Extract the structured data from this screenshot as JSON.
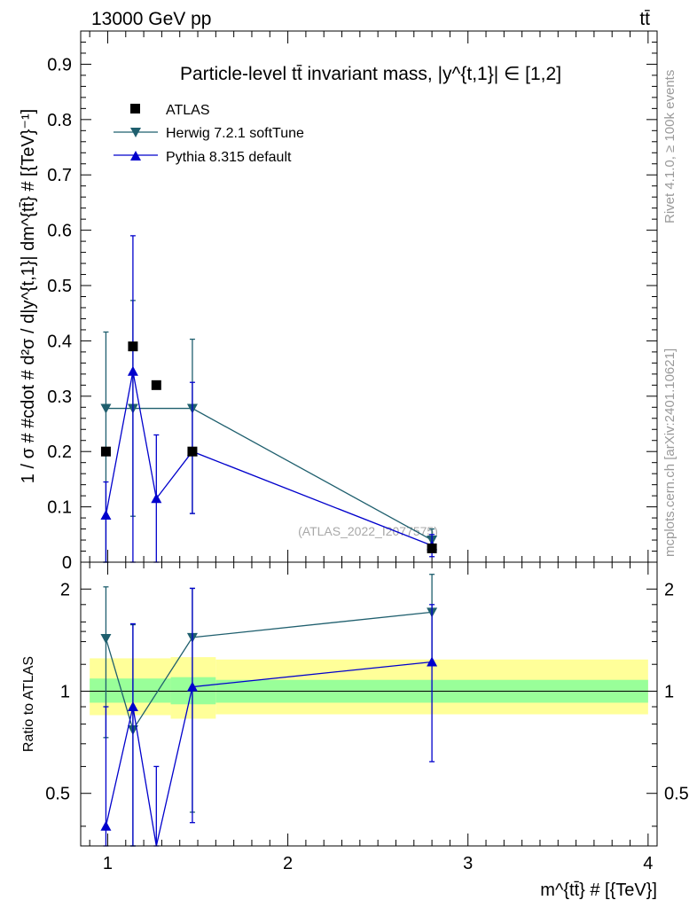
{
  "header": {
    "energy_label": "13000 GeV pp",
    "process_label": "tt̄"
  },
  "side_labels": {
    "rivet": "Rivet 4.1.0, ≥ 100k events",
    "mcplots": "mcplots.cern.ch [arXiv:2401.10621]"
  },
  "watermark": "(ATLAS_2022_I2077575)",
  "colors": {
    "data": "#000000",
    "herwig": "#1f5f6e",
    "pythia": "#0000cc",
    "band_outer": "#ffff99",
    "band_inner": "#99ff99"
  },
  "chart_data": [
    {
      "type": "scatter",
      "title": "Particle-level tt̄ invariant mass, |y^{t,1}| ∈ [1,2]",
      "xlabel": "m^{tt̄} # [{TeV}]",
      "ylabel": "1 / σ # #cdot # d²σ / d|y^{t,1}| dm^{tt̄} # [{TeV}⁻¹]",
      "xlim": [
        0.85,
        4.05
      ],
      "ylim": [
        0,
        0.96
      ],
      "x_ticks": [
        1,
        2,
        3,
        4
      ],
      "y_ticks": [
        0,
        0.1,
        0.2,
        0.3,
        0.4,
        0.5,
        0.6,
        0.7,
        0.8,
        0.9
      ],
      "y_tick_labels": [
        "0",
        "0.1",
        "0.2",
        "0.3",
        "0.4",
        "0.5",
        "0.6",
        "0.7",
        "0.8",
        "0.9"
      ],
      "legend": [
        "ATLAS",
        "Herwig 7.2.1 softTune",
        "Pythia 8.315 default"
      ],
      "series": [
        {
          "name": "ATLAS",
          "marker": "square",
          "x": [
            0.99,
            1.14,
            1.27,
            1.47,
            2.8
          ],
          "y": [
            0.2,
            0.39,
            0.32,
            0.2,
            0.025
          ]
        },
        {
          "name": "Herwig 7.2.1 softTune",
          "marker": "triangle-down",
          "x": [
            0.99,
            1.14,
            1.47,
            2.8
          ],
          "y": [
            0.278,
            0.278,
            0.278,
            0.04
          ],
          "err_low": [
            0.278,
            0.195,
            0.19,
            0.02
          ],
          "err_high": [
            0.138,
            0.195,
            0.125,
            0.02
          ]
        },
        {
          "name": "Pythia 8.315 default",
          "marker": "triangle-up",
          "x": [
            0.99,
            1.14,
            1.27,
            1.47,
            2.8
          ],
          "y": [
            0.085,
            0.345,
            0.115,
            0.2,
            0.03
          ],
          "err_low": [
            0.085,
            0.345,
            0.115,
            0.112,
            0.02
          ],
          "err_high": [
            0.06,
            0.245,
            0.115,
            0.125,
            0.02
          ]
        }
      ]
    },
    {
      "type": "line",
      "title": "",
      "xlabel": "m^{tt̄} # [{TeV}]",
      "ylabel": "Ratio to ATLAS",
      "xlim": [
        0.85,
        4.05
      ],
      "ylim": [
        0.35,
        2.4
      ],
      "y_scale": "log",
      "x_ticks": [
        1,
        2,
        3,
        4
      ],
      "y_ticks": [
        0.5,
        1,
        2
      ],
      "y_tick_labels": [
        "0.5",
        "1",
        "2"
      ],
      "bands": [
        {
          "x0": 0.9,
          "x1": 1.35,
          "outer": [
            0.85,
            1.25
          ],
          "inner": [
            0.925,
            1.09
          ]
        },
        {
          "x0": 1.35,
          "x1": 1.6,
          "outer": [
            0.83,
            1.26
          ],
          "inner": [
            0.915,
            1.1
          ]
        },
        {
          "x0": 1.6,
          "x1": 4.0,
          "outer": [
            0.855,
            1.24
          ],
          "inner": [
            0.925,
            1.08
          ]
        }
      ],
      "series": [
        {
          "name": "Herwig 7.2.1 softTune",
          "marker": "triangle-down",
          "x": [
            0.99,
            1.14,
            1.47,
            2.8
          ],
          "y": [
            1.43,
            0.77,
            1.44,
            1.71
          ],
          "err_low": [
            0.7,
            0.5,
            1.0,
            0.5
          ],
          "err_high": [
            0.6,
            0.8,
            0.57,
            0.5
          ]
        },
        {
          "name": "Pythia 8.315 default",
          "marker": "triangle-up",
          "x": [
            0.99,
            1.14,
            1.27,
            1.47,
            2.8
          ],
          "y": [
            0.4,
            0.9,
            0.3,
            1.03,
            1.22
          ],
          "err_low": [
            0.4,
            0.9,
            0.3,
            0.62,
            0.6
          ],
          "err_high": [
            0.5,
            0.68,
            0.3,
            0.98,
            0.58
          ]
        }
      ]
    }
  ]
}
